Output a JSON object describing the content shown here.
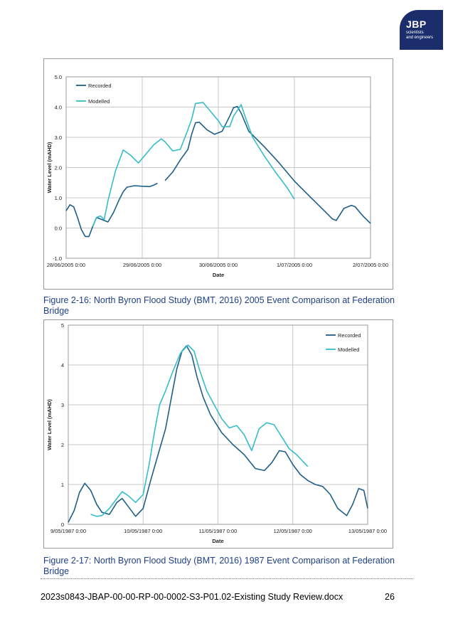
{
  "logo": {
    "brand": "JBP",
    "tagline_1": "scientists",
    "tagline_2": "and engineers"
  },
  "figures": [
    {
      "caption": "Figure 2-16: North Byron Flood Study (BMT, 2016) 2005 Event Comparison at Federation Bridge",
      "chart_data": {
        "type": "line",
        "xlabel": "Date",
        "ylabel": "Water Level (mAHD)",
        "xlim": [
          0,
          4
        ],
        "ylim": [
          -1,
          5
        ],
        "x_ticks": [
          0,
          1,
          2,
          3,
          4
        ],
        "x_tick_labels": [
          "28/06/2005 0:00",
          "29/06/2005 0:00",
          "30/06/2005 0:00",
          "1/07/2005 0:00",
          "2/07/2005 0:00"
        ],
        "y_ticks": [
          -1,
          0,
          1,
          2,
          3,
          4,
          5
        ],
        "y_tick_labels": [
          "-1.0",
          "0.0",
          "1.0",
          "2.0",
          "3.0",
          "4.0",
          "5.0"
        ],
        "grid": true,
        "legend": "top-left",
        "series": [
          {
            "name": "Recorded",
            "color": "#1f5f87",
            "segments": [
              [
                [
                  0.0,
                  0.57
                ],
                [
                  0.05,
                  0.77
                ],
                [
                  0.1,
                  0.7
                ],
                [
                  0.15,
                  0.35
                ],
                [
                  0.2,
                  -0.05
                ],
                [
                  0.25,
                  -0.28
                ],
                [
                  0.3,
                  -0.28
                ],
                [
                  0.35,
                  0.05
                ],
                [
                  0.4,
                  0.35
                ],
                [
                  0.45,
                  0.3
                ],
                [
                  0.5,
                  0.25
                ],
                [
                  0.55,
                  0.2
                ],
                [
                  0.62,
                  0.5
                ],
                [
                  0.7,
                  0.95
                ],
                [
                  0.75,
                  1.2
                ],
                [
                  0.8,
                  1.35
                ],
                [
                  0.9,
                  1.4
                ],
                [
                  1.0,
                  1.38
                ],
                [
                  1.1,
                  1.37
                ],
                [
                  1.15,
                  1.42
                ],
                [
                  1.2,
                  1.48
                ]
              ],
              [
                [
                  1.3,
                  1.57
                ],
                [
                  1.4,
                  1.85
                ],
                [
                  1.5,
                  2.25
                ],
                [
                  1.6,
                  2.6
                ],
                [
                  1.65,
                  3.1
                ],
                [
                  1.7,
                  3.48
                ],
                [
                  1.75,
                  3.5
                ],
                [
                  1.85,
                  3.25
                ],
                [
                  1.95,
                  3.1
                ],
                [
                  2.05,
                  3.2
                ],
                [
                  2.15,
                  3.7
                ],
                [
                  2.2,
                  3.98
                ],
                [
                  2.25,
                  4.02
                ],
                [
                  2.3,
                  3.8
                ],
                [
                  2.4,
                  3.2
                ],
                [
                  2.6,
                  2.7
                ],
                [
                  2.8,
                  2.15
                ],
                [
                  3.0,
                  1.55
                ],
                [
                  3.2,
                  1.05
                ],
                [
                  3.4,
                  0.55
                ],
                [
                  3.5,
                  0.3
                ],
                [
                  3.55,
                  0.25
                ],
                [
                  3.6,
                  0.45
                ],
                [
                  3.65,
                  0.65
                ],
                [
                  3.75,
                  0.75
                ],
                [
                  3.8,
                  0.7
                ],
                [
                  3.9,
                  0.4
                ],
                [
                  4.0,
                  0.15
                ]
              ]
            ]
          },
          {
            "name": "Modelled",
            "color": "#35bdc8",
            "segments": [
              [
                [
                  0.35,
                  0.05
                ],
                [
                  0.4,
                  0.35
                ],
                [
                  0.45,
                  0.4
                ],
                [
                  0.5,
                  0.28
                ],
                [
                  0.55,
                  0.9
                ],
                [
                  0.65,
                  1.9
                ],
                [
                  0.75,
                  2.58
                ],
                [
                  0.85,
                  2.4
                ],
                [
                  0.95,
                  2.15
                ],
                [
                  1.05,
                  2.45
                ],
                [
                  1.15,
                  2.75
                ],
                [
                  1.25,
                  2.95
                ],
                [
                  1.3,
                  2.85
                ],
                [
                  1.4,
                  2.55
                ],
                [
                  1.5,
                  2.6
                ],
                [
                  1.6,
                  3.25
                ],
                [
                  1.65,
                  3.6
                ],
                [
                  1.7,
                  4.12
                ],
                [
                  1.8,
                  4.15
                ],
                [
                  1.9,
                  3.85
                ],
                [
                  2.0,
                  3.55
                ],
                [
                  2.05,
                  3.35
                ],
                [
                  2.15,
                  3.35
                ],
                [
                  2.2,
                  3.7
                ],
                [
                  2.3,
                  4.08
                ],
                [
                  2.35,
                  3.7
                ],
                [
                  2.45,
                  3.0
                ],
                [
                  2.6,
                  2.4
                ],
                [
                  2.75,
                  1.85
                ],
                [
                  2.9,
                  1.35
                ],
                [
                  3.0,
                  0.95
                ]
              ]
            ]
          }
        ]
      }
    },
    {
      "caption": "Figure 2-17: North Byron Flood Study (BMT, 2016) 1987 Event Comparison at Federation Bridge",
      "chart_data": {
        "type": "line",
        "xlabel": "Date",
        "ylabel": "Water Level (mAHD)",
        "xlim": [
          0,
          4
        ],
        "ylim": [
          0,
          5
        ],
        "x_ticks": [
          0,
          1,
          2,
          3,
          4
        ],
        "x_tick_labels": [
          "9/05/1987 0:00",
          "10/05/1987 0:00",
          "11/05/1987 0:00",
          "12/05/1987 0:00",
          "13/05/1987 0:00"
        ],
        "y_ticks": [
          0,
          1,
          2,
          3,
          4,
          5
        ],
        "y_tick_labels": [
          "0",
          "1",
          "2",
          "3",
          "4",
          "5"
        ],
        "grid": true,
        "legend": "top-right",
        "series": [
          {
            "name": "Recorded",
            "color": "#1f5f87",
            "segments": [
              [
                [
                  0.0,
                  0.05
                ],
                [
                  0.08,
                  0.35
                ],
                [
                  0.15,
                  0.8
                ],
                [
                  0.22,
                  1.03
                ],
                [
                  0.3,
                  0.85
                ],
                [
                  0.38,
                  0.5
                ],
                [
                  0.45,
                  0.3
                ],
                [
                  0.55,
                  0.25
                ],
                [
                  0.65,
                  0.55
                ],
                [
                  0.72,
                  0.65
                ],
                [
                  0.8,
                  0.45
                ],
                [
                  0.9,
                  0.2
                ],
                [
                  1.0,
                  0.4
                ],
                [
                  1.1,
                  1.1
                ],
                [
                  1.2,
                  1.75
                ],
                [
                  1.3,
                  2.4
                ],
                [
                  1.38,
                  3.2
                ],
                [
                  1.45,
                  3.9
                ],
                [
                  1.52,
                  4.35
                ],
                [
                  1.58,
                  4.48
                ],
                [
                  1.65,
                  4.25
                ],
                [
                  1.72,
                  3.7
                ],
                [
                  1.8,
                  3.2
                ],
                [
                  1.9,
                  2.75
                ],
                [
                  2.05,
                  2.3
                ],
                [
                  2.2,
                  2.0
                ],
                [
                  2.35,
                  1.75
                ],
                [
                  2.5,
                  1.4
                ],
                [
                  2.62,
                  1.35
                ],
                [
                  2.72,
                  1.55
                ],
                [
                  2.82,
                  1.85
                ],
                [
                  2.9,
                  1.82
                ],
                [
                  3.0,
                  1.5
                ],
                [
                  3.1,
                  1.25
                ],
                [
                  3.2,
                  1.1
                ],
                [
                  3.3,
                  1.0
                ],
                [
                  3.4,
                  0.95
                ],
                [
                  3.5,
                  0.75
                ],
                [
                  3.6,
                  0.4
                ],
                [
                  3.72,
                  0.22
                ],
                [
                  3.8,
                  0.5
                ],
                [
                  3.88,
                  0.9
                ],
                [
                  3.95,
                  0.85
                ],
                [
                  4.0,
                  0.4
                ]
              ]
            ]
          },
          {
            "name": "Modelled",
            "color": "#35bdc8",
            "segments": [
              [
                [
                  0.3,
                  0.25
                ],
                [
                  0.38,
                  0.2
                ],
                [
                  0.45,
                  0.22
                ],
                [
                  0.55,
                  0.4
                ],
                [
                  0.65,
                  0.65
                ],
                [
                  0.72,
                  0.82
                ],
                [
                  0.8,
                  0.72
                ],
                [
                  0.9,
                  0.55
                ],
                [
                  1.0,
                  0.75
                ],
                [
                  1.08,
                  1.5
                ],
                [
                  1.15,
                  2.3
                ],
                [
                  1.22,
                  3.0
                ],
                [
                  1.3,
                  3.35
                ],
                [
                  1.4,
                  3.85
                ],
                [
                  1.5,
                  4.3
                ],
                [
                  1.6,
                  4.5
                ],
                [
                  1.68,
                  4.35
                ],
                [
                  1.75,
                  3.9
                ],
                [
                  1.85,
                  3.35
                ],
                [
                  1.95,
                  3.0
                ],
                [
                  2.05,
                  2.65
                ],
                [
                  2.15,
                  2.42
                ],
                [
                  2.25,
                  2.48
                ],
                [
                  2.35,
                  2.25
                ],
                [
                  2.45,
                  1.85
                ],
                [
                  2.55,
                  2.4
                ],
                [
                  2.65,
                  2.55
                ],
                [
                  2.75,
                  2.5
                ],
                [
                  2.85,
                  2.2
                ],
                [
                  2.95,
                  1.9
                ],
                [
                  3.05,
                  1.75
                ],
                [
                  3.15,
                  1.55
                ],
                [
                  3.2,
                  1.45
                ]
              ]
            ]
          }
        ]
      }
    }
  ],
  "footer": {
    "document": "2023s0843-JBAP-00-00-RP-00-0002-S3-P01.02-Existing Study Review.docx",
    "page": "26"
  }
}
